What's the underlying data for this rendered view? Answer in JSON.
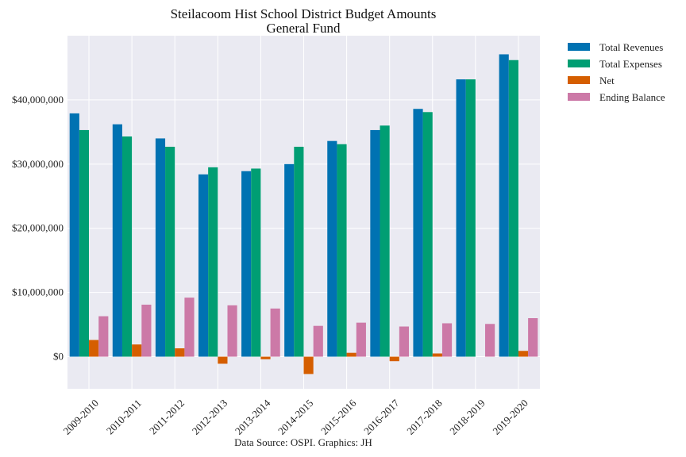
{
  "chart_data": {
    "type": "bar",
    "title": "Steilacoom Hist School District Budget Amounts",
    "subtitle": "General Fund",
    "source_note": "Data Source: OSPI. Graphics: JH",
    "categories": [
      "2009-2010",
      "2010-2011",
      "2011-2012",
      "2012-2013",
      "2013-2014",
      "2014-2015",
      "2015-2016",
      "2016-2017",
      "2017-2018",
      "2018-2019",
      "2019-2020"
    ],
    "ylim": [
      -5000000,
      50000000
    ],
    "yticks": [
      0,
      10000000,
      20000000,
      30000000,
      40000000
    ],
    "ytick_labels": [
      "$0",
      "$10,000,000",
      "$20,000,000",
      "$30,000,000",
      "$40,000,000"
    ],
    "grid": true,
    "legend_position": "outside-top-right",
    "series": [
      {
        "name": "Total Revenues",
        "color": "#0072b2",
        "values": [
          37900000,
          36200000,
          34000000,
          28400000,
          28900000,
          30000000,
          33600000,
          35300000,
          38600000,
          43200000,
          47100000
        ]
      },
      {
        "name": "Total Expenses",
        "color": "#009e73",
        "values": [
          35300000,
          34300000,
          32700000,
          29500000,
          29300000,
          32700000,
          33100000,
          36000000,
          38100000,
          43200000,
          46200000
        ]
      },
      {
        "name": "Net",
        "color": "#d55e00",
        "values": [
          2600000,
          1900000,
          1300000,
          -1100000,
          -400000,
          -2700000,
          600000,
          -700000,
          500000,
          0,
          900000
        ]
      },
      {
        "name": "Ending Balance",
        "color": "#cc79a7",
        "values": [
          6300000,
          8100000,
          9200000,
          8000000,
          7500000,
          4800000,
          5300000,
          4700000,
          5200000,
          5100000,
          6000000
        ]
      }
    ]
  }
}
